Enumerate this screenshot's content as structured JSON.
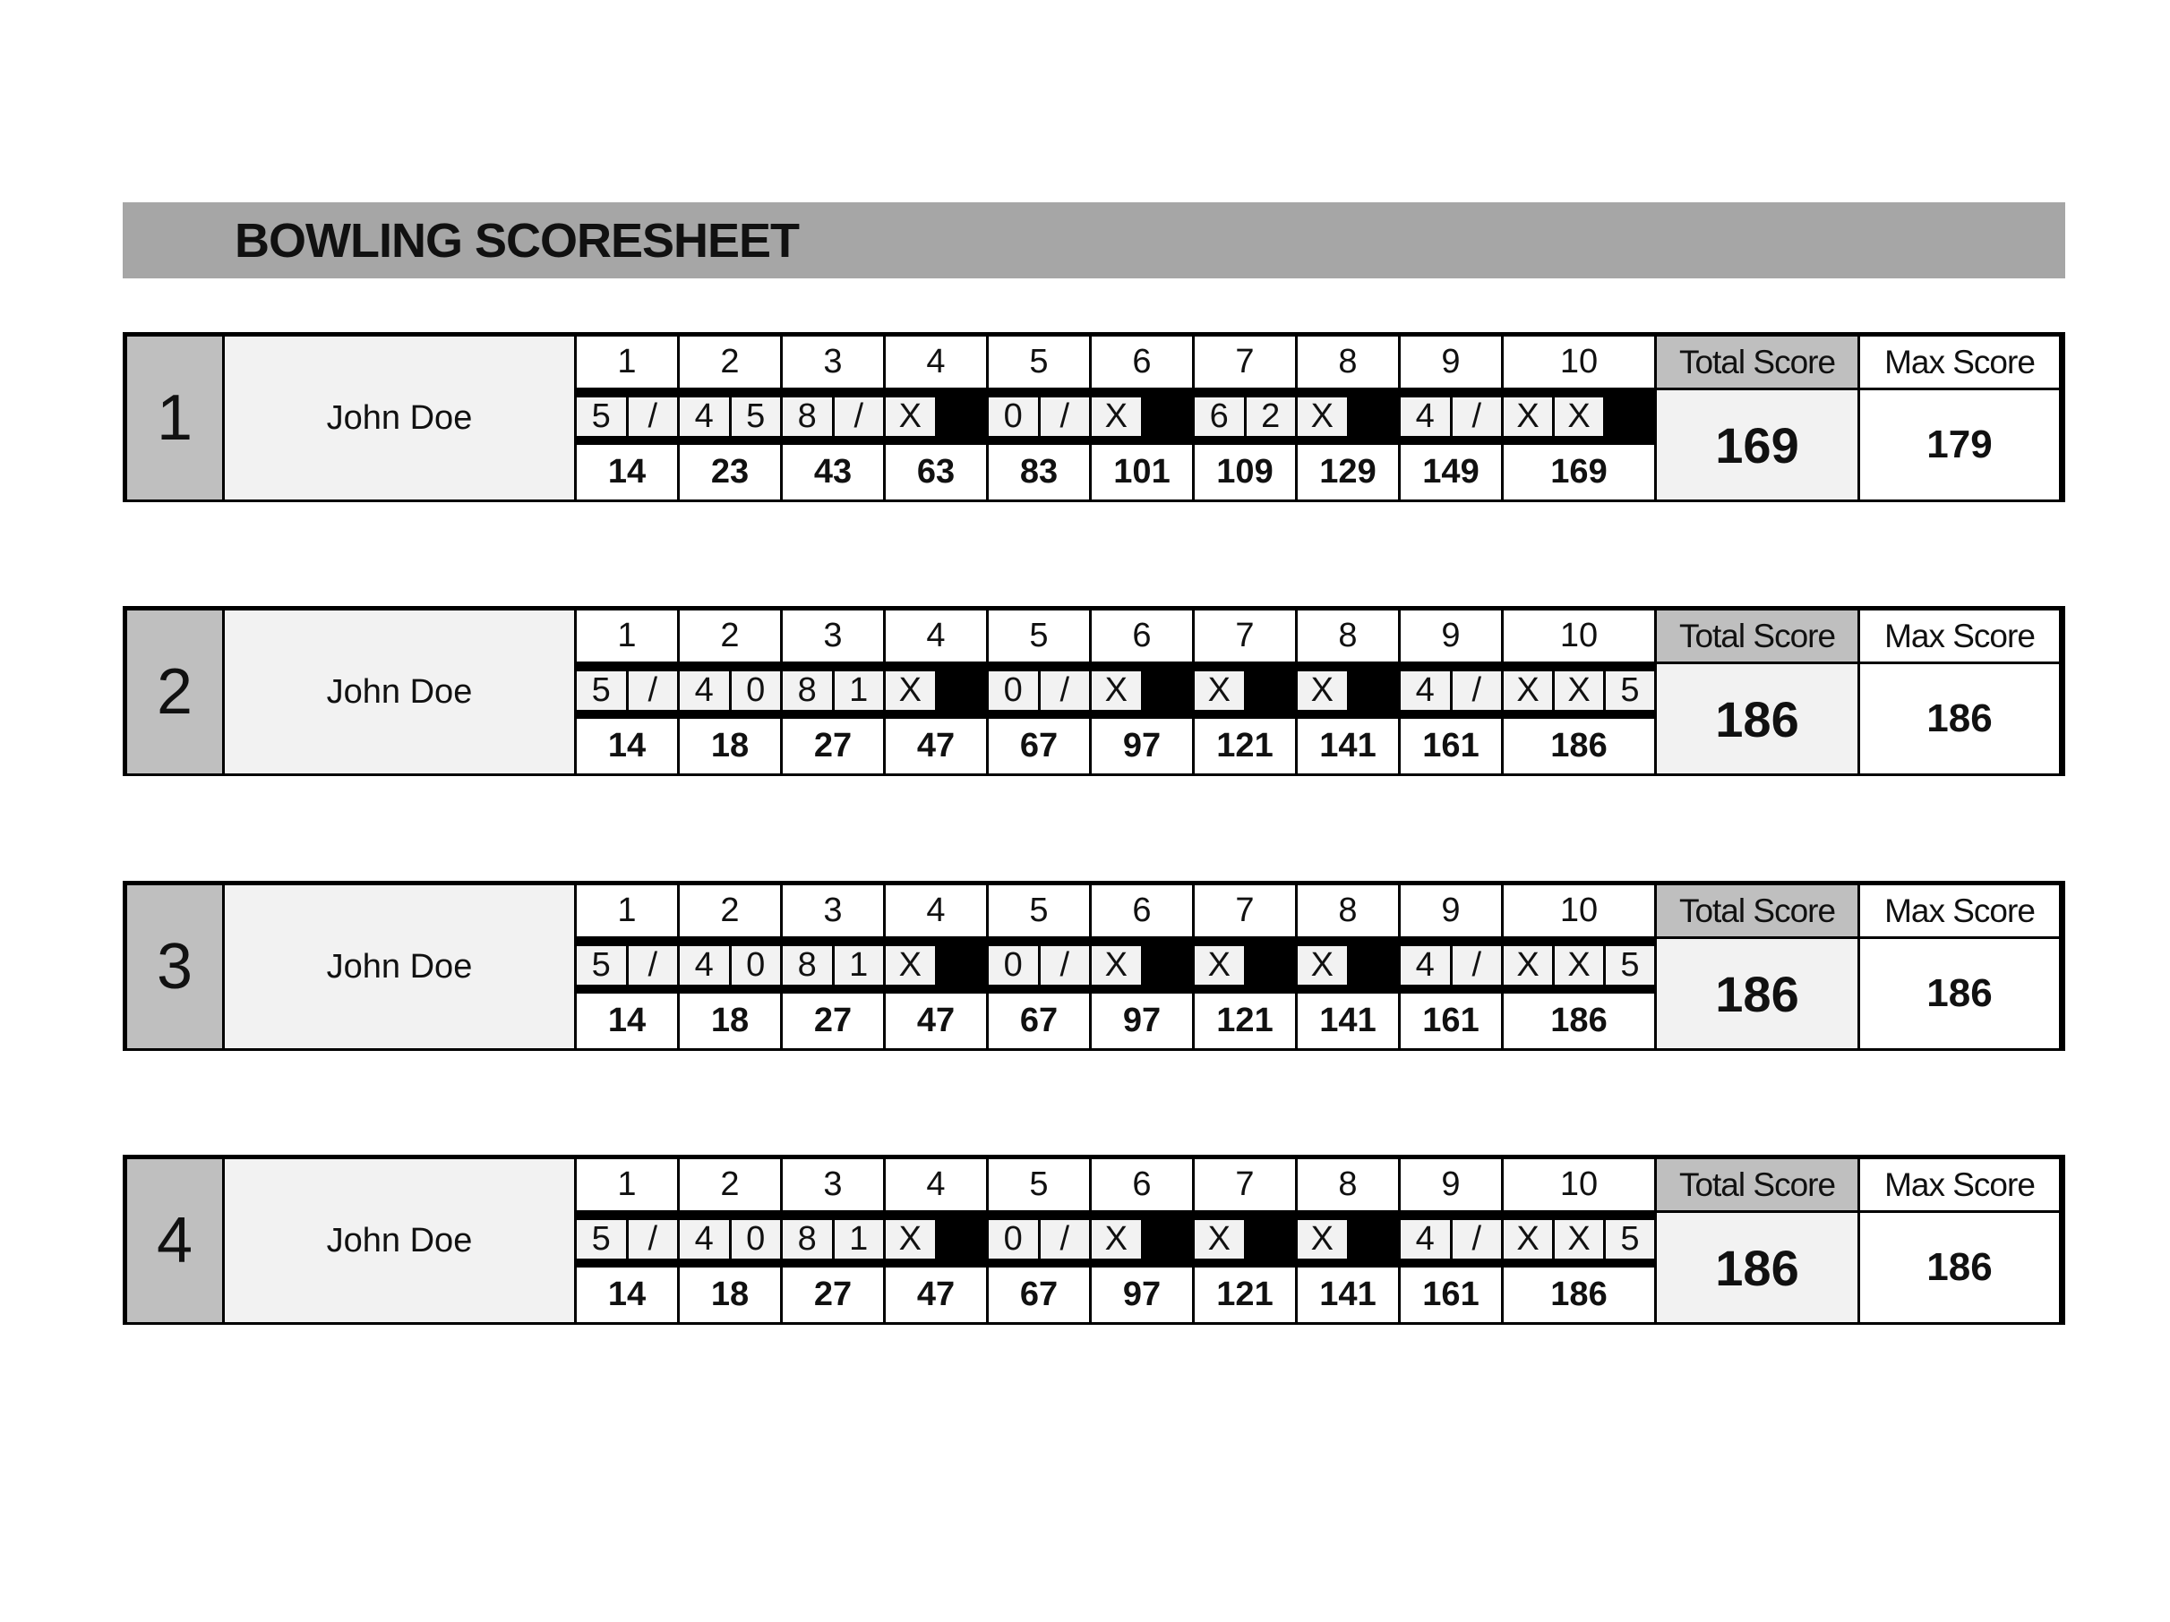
{
  "title": "BOWLING SCORESHEET",
  "frame_numbers": [
    "1",
    "2",
    "3",
    "4",
    "5",
    "6",
    "7",
    "8",
    "9",
    "10"
  ],
  "labels": {
    "total_score": "Total Score",
    "max_score": "Max Score"
  },
  "colors": {
    "title_bar": "#a6a6a6",
    "header_gray": "#bfbfbf",
    "cell_light": "#f2f2f2"
  },
  "games": [
    {
      "number": "1",
      "player": "John Doe",
      "marks": [
        [
          "5",
          "/"
        ],
        [
          "4",
          "5"
        ],
        [
          "8",
          "/"
        ],
        [
          "X",
          ""
        ],
        [
          "0",
          "/"
        ],
        [
          "X",
          ""
        ],
        [
          "6",
          "2"
        ],
        [
          "X",
          ""
        ],
        [
          "4",
          "/"
        ],
        [
          "X",
          "X",
          ""
        ]
      ],
      "cumulative": [
        "14",
        "23",
        "43",
        "63",
        "83",
        "101",
        "109",
        "129",
        "149",
        "169"
      ],
      "total_score": "169",
      "max_score": "179"
    },
    {
      "number": "2",
      "player": "John Doe",
      "marks": [
        [
          "5",
          "/"
        ],
        [
          "4",
          "0"
        ],
        [
          "8",
          "1"
        ],
        [
          "X",
          ""
        ],
        [
          "0",
          "/"
        ],
        [
          "X",
          ""
        ],
        [
          "X",
          ""
        ],
        [
          "X",
          ""
        ],
        [
          "4",
          "/"
        ],
        [
          "X",
          "X",
          "5"
        ]
      ],
      "cumulative": [
        "14",
        "18",
        "27",
        "47",
        "67",
        "97",
        "121",
        "141",
        "161",
        "186"
      ],
      "total_score": "186",
      "max_score": "186"
    },
    {
      "number": "3",
      "player": "John Doe",
      "marks": [
        [
          "5",
          "/"
        ],
        [
          "4",
          "0"
        ],
        [
          "8",
          "1"
        ],
        [
          "X",
          ""
        ],
        [
          "0",
          "/"
        ],
        [
          "X",
          ""
        ],
        [
          "X",
          ""
        ],
        [
          "X",
          ""
        ],
        [
          "4",
          "/"
        ],
        [
          "X",
          "X",
          "5"
        ]
      ],
      "cumulative": [
        "14",
        "18",
        "27",
        "47",
        "67",
        "97",
        "121",
        "141",
        "161",
        "186"
      ],
      "total_score": "186",
      "max_score": "186"
    },
    {
      "number": "4",
      "player": "John Doe",
      "marks": [
        [
          "5",
          "/"
        ],
        [
          "4",
          "0"
        ],
        [
          "8",
          "1"
        ],
        [
          "X",
          ""
        ],
        [
          "0",
          "/"
        ],
        [
          "X",
          ""
        ],
        [
          "X",
          ""
        ],
        [
          "X",
          ""
        ],
        [
          "4",
          "/"
        ],
        [
          "X",
          "X",
          "5"
        ]
      ],
      "cumulative": [
        "14",
        "18",
        "27",
        "47",
        "67",
        "97",
        "121",
        "141",
        "161",
        "186"
      ],
      "total_score": "186",
      "max_score": "186"
    }
  ]
}
